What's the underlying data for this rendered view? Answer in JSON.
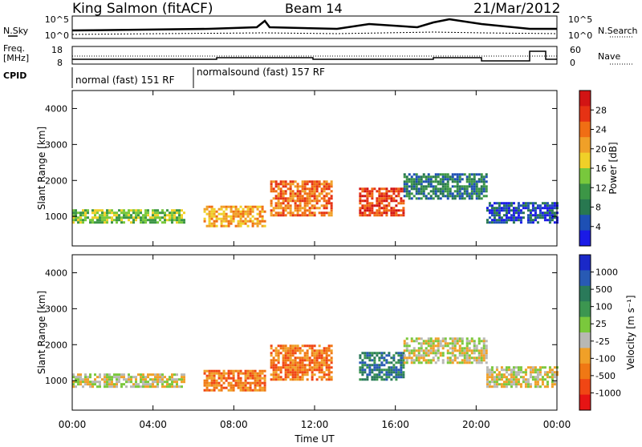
{
  "header": {
    "title": "King Salmon (fitACF)",
    "beam": "Beam 14",
    "date": "21/Mar/2012"
  },
  "noise_panel": {
    "left_label": "N.Sky",
    "right_label": "N.Search",
    "left_ticks": [
      "10^5",
      "10^0"
    ],
    "right_ticks": [
      "10^5",
      "10^0"
    ]
  },
  "freq_panel": {
    "left_label_line1": "Freq.",
    "left_label_line2": "[MHz]",
    "right_label": "Nave",
    "left_ticks": [
      "18",
      "8"
    ],
    "right_ticks": [
      "60",
      "0"
    ]
  },
  "cpid": {
    "label": "CPID",
    "segments": [
      {
        "text": "normal (fast) 151 RF",
        "start_hour": 0,
        "end_hour": 6
      },
      {
        "text": "normalsound (fast) 157 RF",
        "start_hour": 6,
        "end_hour": 24
      }
    ]
  },
  "colors": {
    "power": [
      "#1a1ae6",
      "#1e50b4",
      "#287850",
      "#3c9646",
      "#78c83c",
      "#f0d028",
      "#f0a028",
      "#f06e14",
      "#e63214",
      "#d21414"
    ],
    "velocity": [
      "#1a28c8",
      "#285ab4",
      "#2a7a5a",
      "#3c9650",
      "#7ac83c",
      "#b8b8b4",
      "#f0a028",
      "#f07814",
      "#f04614",
      "#e61414"
    ]
  },
  "chart_data": [
    {
      "type": "heatmap",
      "panel": "power",
      "ylabel": "Slant Range [km]",
      "ylim": [
        180,
        4500
      ],
      "yticks": [
        "1000",
        "2000",
        "3000",
        "4000"
      ],
      "colorbar_label": "Power [dB]",
      "colorbar_ticks": [
        "4",
        "8",
        "12",
        "16",
        "20",
        "24",
        "28"
      ],
      "echo_bands": [
        {
          "start_hour": 0,
          "end_hour": 5.5,
          "range_low": 800,
          "range_high": 1200,
          "level": 4
        },
        {
          "start_hour": 6.5,
          "end_hour": 9.5,
          "range_low": 700,
          "range_high": 1300,
          "level": 6
        },
        {
          "start_hour": 9.8,
          "end_hour": 12.8,
          "range_low": 1000,
          "range_high": 2000,
          "level": 7
        },
        {
          "start_hour": 14.2,
          "end_hour": 16.4,
          "range_low": 1000,
          "range_high": 1800,
          "level": 8
        },
        {
          "start_hour": 16.4,
          "end_hour": 20.5,
          "range_low": 1500,
          "range_high": 2200,
          "level": 2
        },
        {
          "start_hour": 20.5,
          "end_hour": 24,
          "range_low": 800,
          "range_high": 1400,
          "level": 1
        }
      ]
    },
    {
      "type": "heatmap",
      "panel": "velocity",
      "xlabel": "Time UT",
      "ylabel": "Slant Range [km]",
      "ylim": [
        180,
        4500
      ],
      "yticks": [
        "1000",
        "2000",
        "3000",
        "4000"
      ],
      "xticks": [
        "00:00",
        "04:00",
        "08:00",
        "12:00",
        "16:00",
        "20:00",
        "00:00"
      ],
      "colorbar_label": "Velocity [m s⁻¹]",
      "colorbar_ticks": [
        "1000",
        "500",
        "100",
        "25",
        "-25",
        "-100",
        "-500",
        "-1000"
      ],
      "echo_bands": [
        {
          "start_hour": 0,
          "end_hour": 5.5,
          "range_low": 800,
          "range_high": 1200,
          "level": 5
        },
        {
          "start_hour": 6.5,
          "end_hour": 9.5,
          "range_low": 700,
          "range_high": 1300,
          "level": 7
        },
        {
          "start_hour": 9.8,
          "end_hour": 12.8,
          "range_low": 1000,
          "range_high": 2000,
          "level": 7
        },
        {
          "start_hour": 14.2,
          "end_hour": 16.4,
          "range_low": 1000,
          "range_high": 1800,
          "level": 2
        },
        {
          "start_hour": 16.4,
          "end_hour": 20.5,
          "range_low": 1500,
          "range_high": 2200,
          "level": 5
        },
        {
          "start_hour": 20.5,
          "end_hour": 24,
          "range_low": 800,
          "range_high": 1400,
          "level": 5
        }
      ]
    }
  ]
}
